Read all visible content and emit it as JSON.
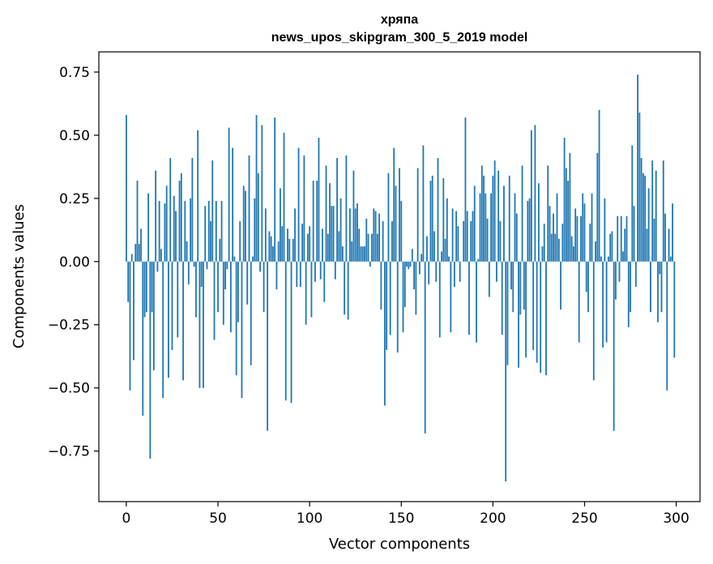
{
  "chart_data": {
    "type": "bar",
    "title_line1": "хряпа",
    "title_line2": "news_upos_skipgram_300_5_2019 model",
    "xlabel": "Vector components",
    "ylabel": "Components values",
    "xlim": [
      -15,
      313
    ],
    "ylim": [
      -0.95,
      0.83
    ],
    "xticks": [
      0,
      50,
      100,
      150,
      200,
      250,
      300
    ],
    "xtick_labels": [
      "0",
      "50",
      "100",
      "150",
      "200",
      "250",
      "300"
    ],
    "yticks": [
      0.75,
      0.5,
      0.25,
      0.0,
      -0.25,
      -0.5,
      -0.75
    ],
    "ytick_labels": [
      "0.75",
      "0.50",
      "0.25",
      "0.00",
      "−0.25",
      "−0.50",
      "−0.75"
    ],
    "bar_color": "#1f77b4",
    "x": "0..299",
    "values": [
      0.58,
      -0.16,
      -0.51,
      0.03,
      -0.39,
      0.07,
      0.32,
      0.07,
      0.13,
      -0.61,
      -0.22,
      -0.2,
      0.27,
      -0.78,
      -0.2,
      -0.43,
      0.36,
      -0.04,
      0.24,
      0.05,
      -0.54,
      0.23,
      0.3,
      -0.46,
      0.41,
      -0.35,
      0.26,
      0.2,
      -0.3,
      0.32,
      0.35,
      -0.47,
      0.24,
      0.08,
      -0.09,
      0.25,
      0.41,
      -0.02,
      -0.22,
      0.52,
      -0.5,
      -0.1,
      -0.5,
      0.22,
      -0.03,
      0.24,
      0.16,
      0.4,
      -0.31,
      0.24,
      -0.2,
      0.09,
      0.24,
      -0.25,
      -0.11,
      -0.03,
      0.53,
      -0.28,
      0.45,
      0.02,
      -0.45,
      -0.24,
      0.16,
      -0.54,
      0.3,
      0.28,
      -0.17,
      0.42,
      -0.41,
      0.02,
      0.25,
      0.58,
      0.35,
      -0.04,
      0.54,
      -0.2,
      0.21,
      -0.67,
      0.12,
      0.1,
      0.06,
      0.57,
      -0.11,
      0.08,
      0.29,
      0.14,
      0.51,
      -0.55,
      0.13,
      0.09,
      -0.56,
      0.09,
      0.21,
      -0.1,
      0.45,
      -0.1,
      0.15,
      0.42,
      -0.25,
      0.11,
      0.14,
      -0.22,
      0.32,
      -0.08,
      0.32,
      0.49,
      -0.07,
      0.13,
      -0.16,
      0.38,
      0.11,
      0.31,
      0.22,
      0.22,
      -0.07,
      0.41,
      0.12,
      0.25,
      0.06,
      -0.21,
      0.42,
      -0.23,
      0.21,
      0.08,
      0.36,
      0.21,
      0.23,
      0.13,
      0.06,
      0.06,
      0.06,
      0.17,
      0.11,
      -0.02,
      0.11,
      0.21,
      0.2,
      0.11,
      0.19,
      -0.19,
      0.16,
      -0.57,
      -0.35,
      0.35,
      -0.29,
      0.16,
      0.45,
      0.3,
      -0.36,
      0.37,
      0.24,
      -0.28,
      -0.18,
      -0.02,
      -0.03,
      -0.02,
      0.05,
      -0.11,
      -0.21,
      0.37,
      -0.05,
      0.03,
      0.46,
      -0.68,
      0.1,
      -0.09,
      0.32,
      0.34,
      0.12,
      -0.08,
      0.41,
      -0.3,
      0.04,
      0.33,
      0.09,
      0.25,
      0.02,
      -0.28,
      0.21,
      -0.1,
      0.2,
      0.14,
      -0.08,
      0.0,
      0.16,
      0.57,
      0.2,
      -0.29,
      0.16,
      0.2,
      0.3,
      -0.32,
      0.01,
      0.27,
      0.38,
      0.34,
      0.27,
      0.17,
      -0.14,
      0.27,
      0.34,
      0.4,
      -0.08,
      0.36,
      0.16,
      -0.29,
      0.3,
      -0.87,
      -0.41,
      0.34,
      -0.11,
      -0.2,
      0.27,
      0.19,
      -0.42,
      -0.21,
      0.38,
      -0.19,
      -0.38,
      0.24,
      0.25,
      0.52,
      -0.35,
      0.54,
      -0.4,
      0.31,
      -0.44,
      0.06,
      0.15,
      -0.45,
      0.38,
      0.22,
      0.11,
      0.19,
      0.11,
      0.27,
      0.09,
      -0.19,
      0.15,
      0.49,
      0.37,
      0.32,
      0.43,
      0.1,
      0.06,
      0.21,
      0.18,
      -0.32,
      0.18,
      0.27,
      0.23,
      -0.12,
      -0.2,
      0.15,
      0.27,
      -0.47,
      0.08,
      0.43,
      0.6,
      0.02,
      -0.34,
      0.25,
      -0.32,
      0.02,
      0.11,
      0.12,
      -0.67,
      -0.15,
      0.18,
      -0.08,
      0.18,
      0.04,
      0.13,
      0.18,
      -0.26,
      -0.2,
      0.46,
      0.22,
      -0.1,
      0.74,
      0.59,
      0.41,
      0.35,
      0.34,
      0.13,
      0.29,
      -0.2,
      0.4,
      0.17,
      0.36,
      -0.24,
      -0.05,
      -0.2,
      0.4,
      0.19,
      -0.51,
      0.13,
      0.02,
      0.23,
      -0.38
    ]
  }
}
